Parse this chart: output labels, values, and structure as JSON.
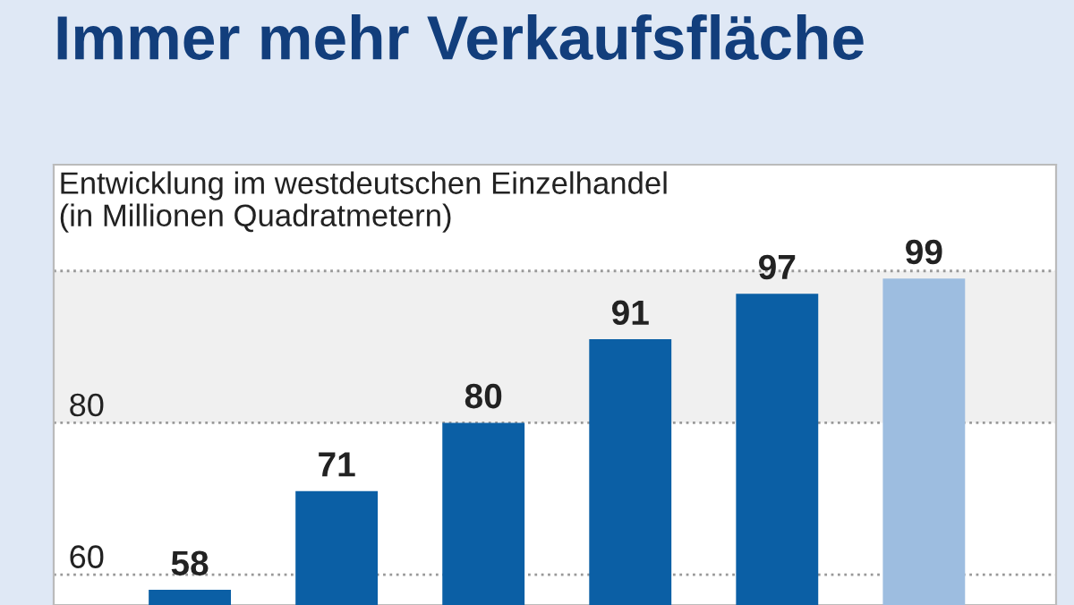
{
  "chart_data": {
    "type": "bar",
    "title": "Immer mehr Verkaufsfläche",
    "subtitle": "Entwicklung im westdeutschen Einzelhandel\n(in Millionen Quadratmetern)",
    "categories": [
      null,
      null,
      null,
      null,
      null,
      null
    ],
    "values": [
      58,
      71,
      80,
      91,
      97,
      99
    ],
    "colors": [
      "#0b5fa5",
      "#0b5fa5",
      "#0b5fa5",
      "#0b5fa5",
      "#0b5fa5",
      "#9dbde0"
    ],
    "ylim": [
      56,
      114
    ],
    "yticks": [
      60,
      80,
      {
        "value": 100,
        "label": null
      }
    ],
    "bands": [
      {
        "axis": "y",
        "from": 80,
        "to": 100,
        "color": "#f0f0f0",
        "label": null
      }
    ],
    "grid": "y",
    "data_labels": true,
    "legend": false
  }
}
